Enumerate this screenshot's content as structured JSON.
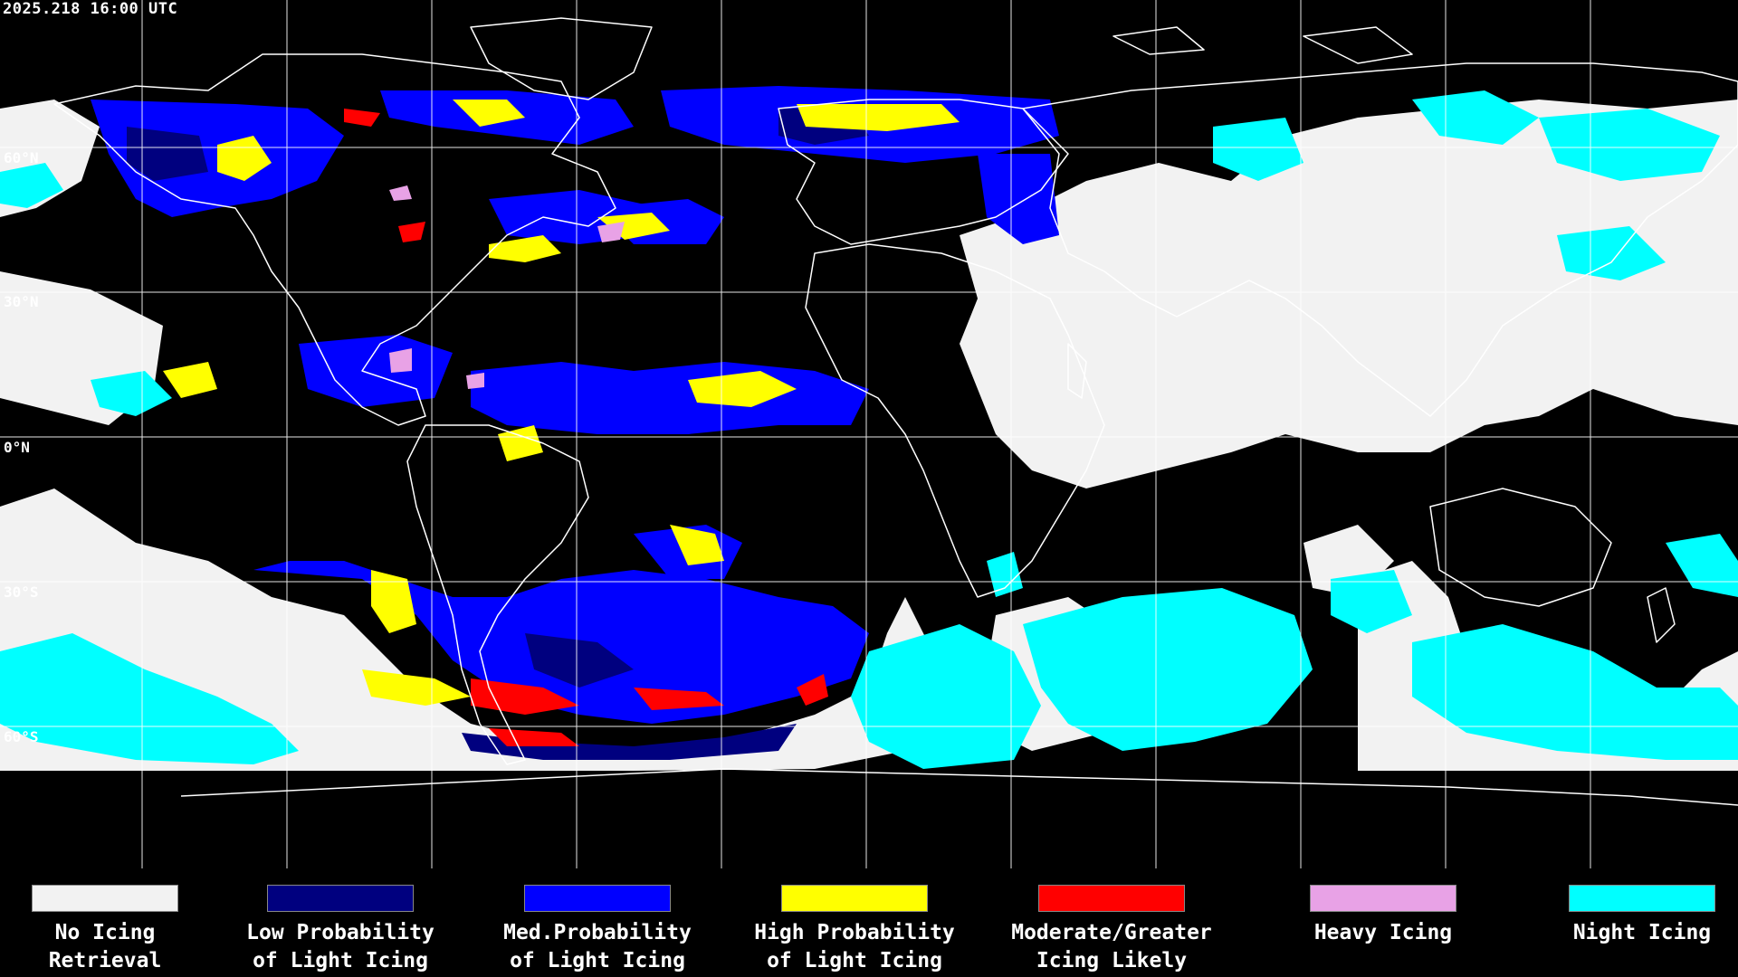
{
  "header": {
    "timestamp": "2025.218 16:00 UTC"
  },
  "map": {
    "lat_labels": [
      "60°N",
      "30°N",
      "0°N",
      "30°S",
      "60°S"
    ]
  },
  "colors": {
    "no_icing": "#f2f2f2",
    "low": "#00007f",
    "med": "#0000ff",
    "high": "#ffff00",
    "moderate": "#ff0000",
    "heavy": "#e8a2e6",
    "night": "#00ffff",
    "coastline": "#ffffff",
    "grid": "#ffffff"
  },
  "legend": {
    "items": [
      {
        "line1": "No Icing",
        "line2": "Retrieval",
        "color": "#f2f2f2",
        "name": "no-icing"
      },
      {
        "line1": "Low Probability",
        "line2": "of Light Icing",
        "color": "#00007f",
        "name": "low-probability"
      },
      {
        "line1": "Med.Probability",
        "line2": "of Light Icing",
        "color": "#0000ff",
        "name": "med-probability"
      },
      {
        "line1": "High Probability",
        "line2": "of Light Icing",
        "color": "#ffff00",
        "name": "high-probability"
      },
      {
        "line1": "Moderate/Greater",
        "line2": "Icing Likely",
        "color": "#ff0000",
        "name": "moderate-greater"
      },
      {
        "line1": "Heavy Icing",
        "line2": "",
        "color": "#e8a2e6",
        "name": "heavy-icing"
      },
      {
        "line1": "Night Icing",
        "line2": "",
        "color": "#00ffff",
        "name": "night-icing"
      }
    ]
  }
}
